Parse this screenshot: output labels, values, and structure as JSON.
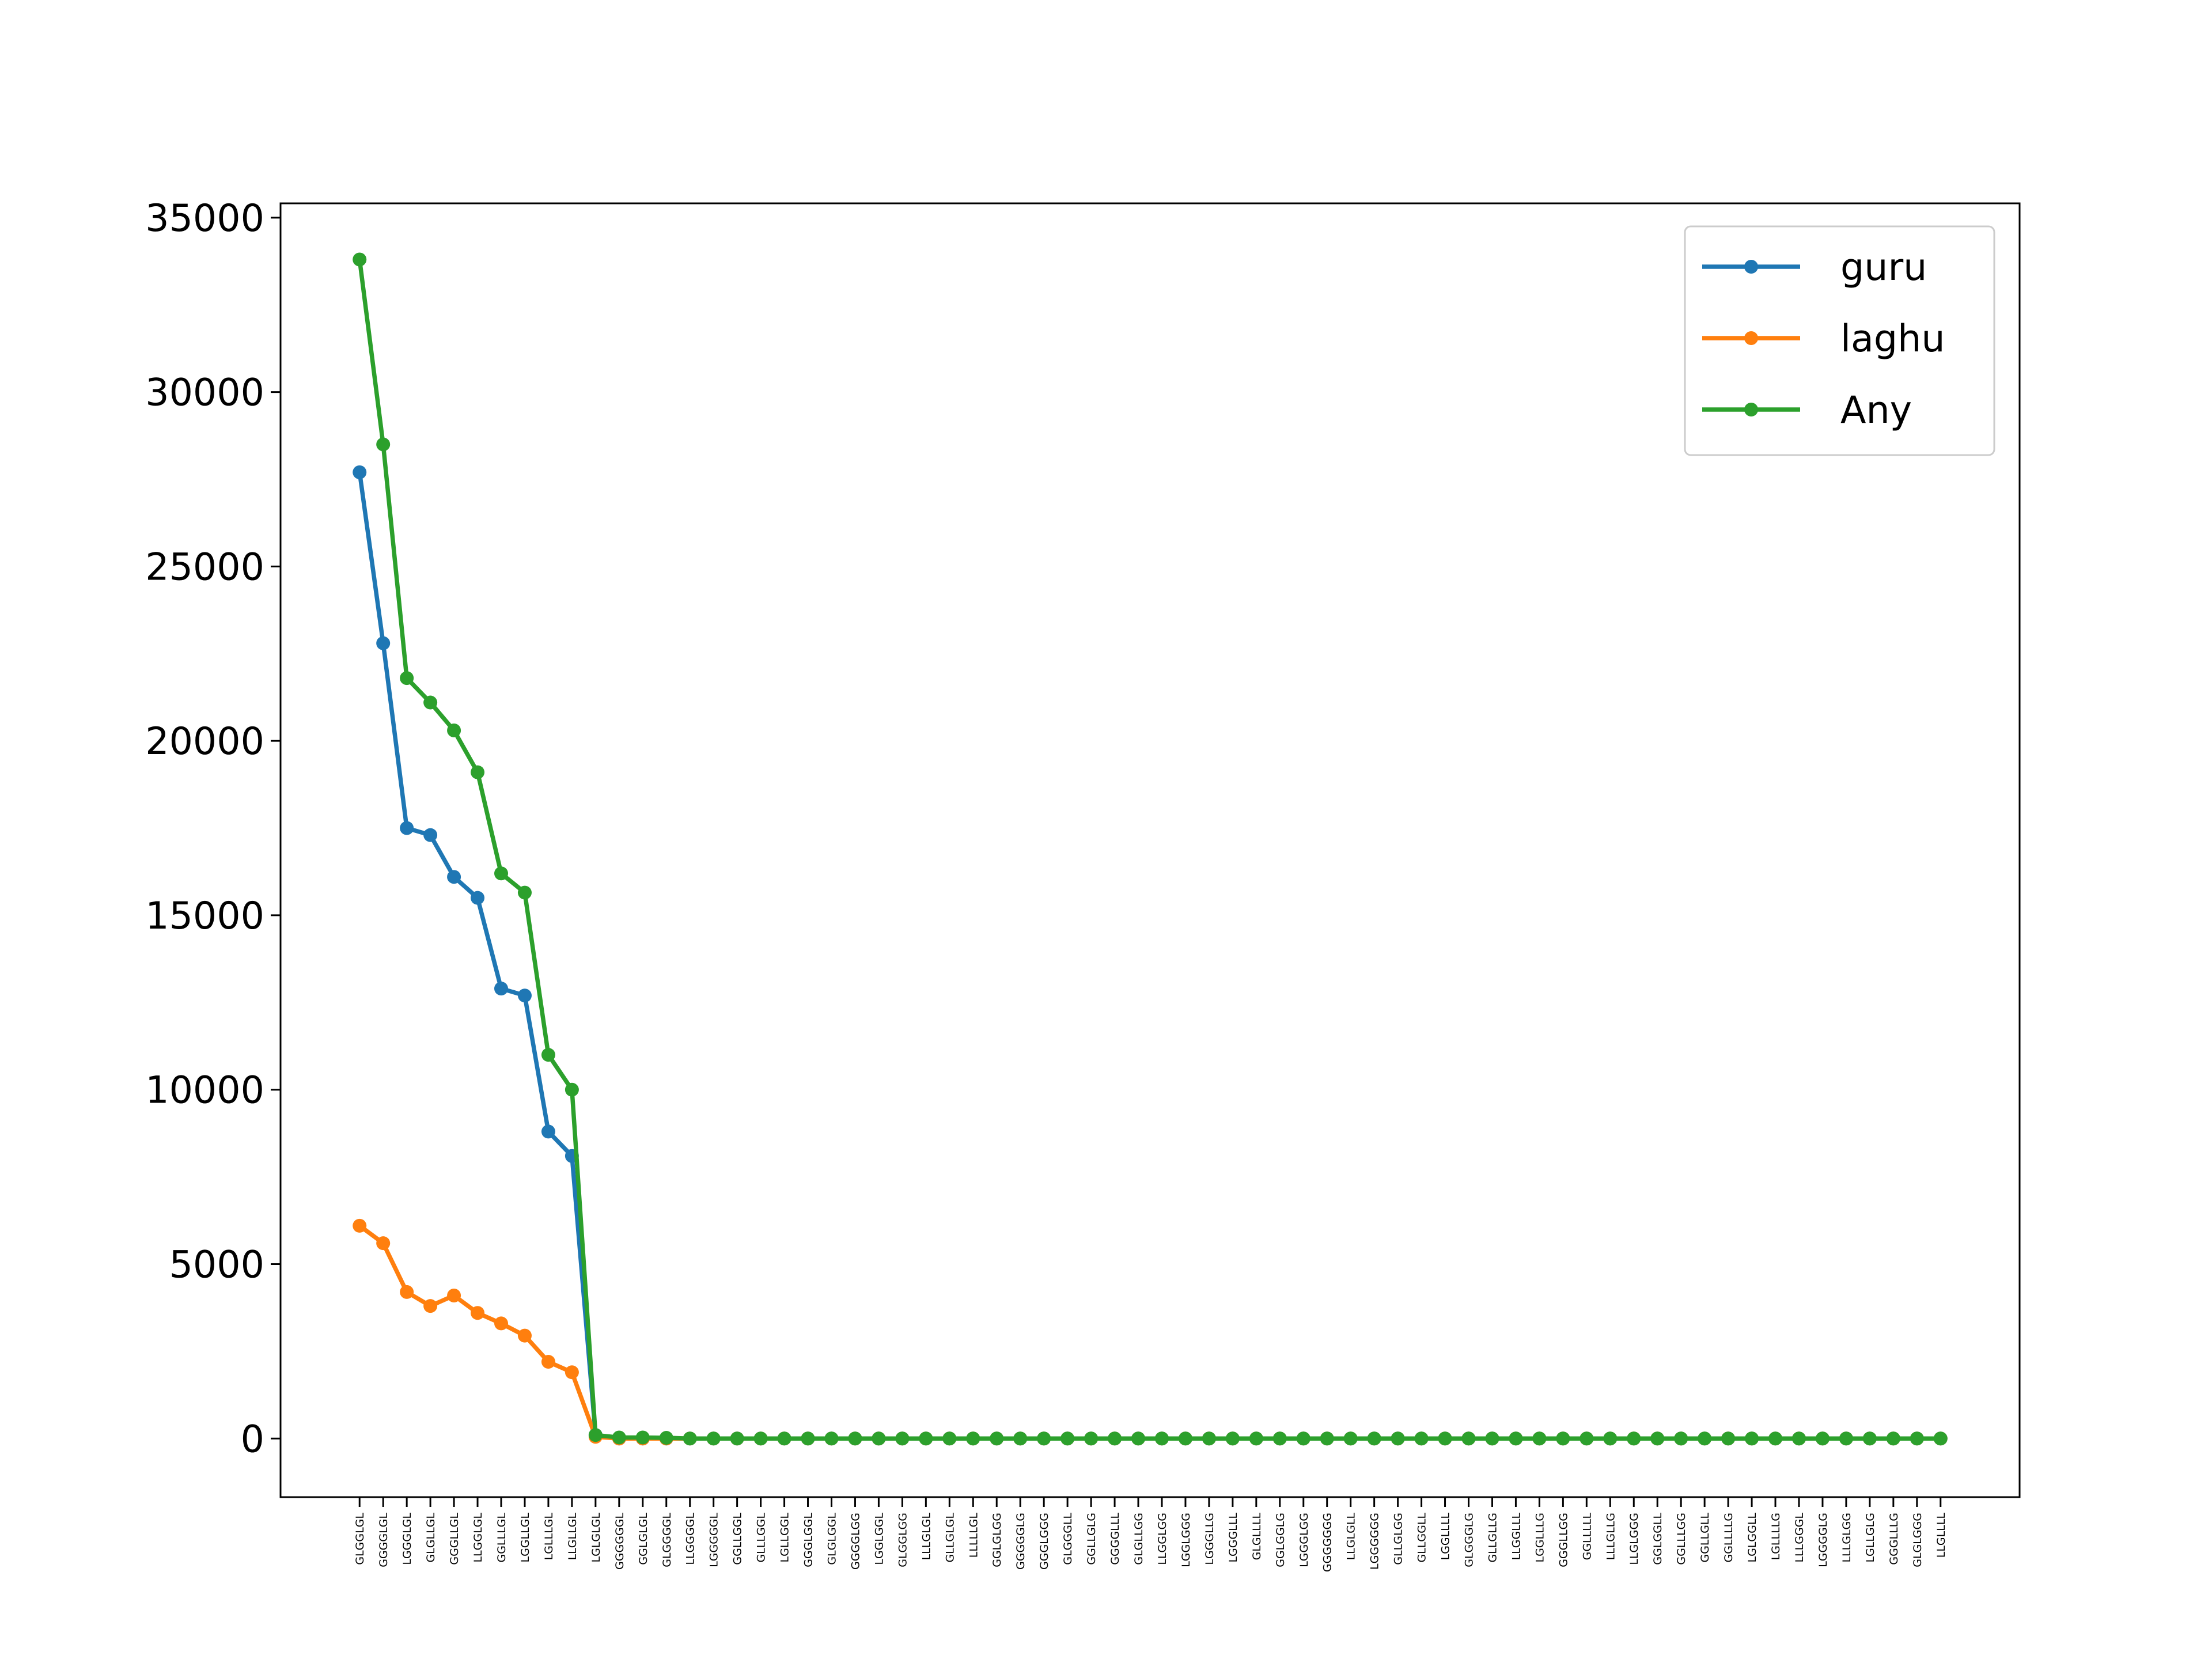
{
  "chart_data": {
    "type": "line",
    "categories": [
      "GLGGLGL",
      "GGGGLGL",
      "LGGGLGL",
      "GLGLLGL",
      "GGGLLGL",
      "LLGGLGL",
      "GGLLLGL",
      "LGGLLGL",
      "LGLLLGL",
      "LLGLLGL",
      "LGLGLGL",
      "GGGGGGL",
      "GGLGLGL",
      "GLGGGGL",
      "LLGGGGL",
      "LGGGGGL",
      "GGLLGGL",
      "GLLLGGL",
      "LGLLGGL",
      "GGGLGGL",
      "GLGLGGL",
      "GGGGLGG",
      "LGGLGGL",
      "GLGGLGG",
      "LLLGLGL",
      "GLLGLGL",
      "LLLLLGL",
      "GGLGLGG",
      "GGGGGLG",
      "GGGLGGG",
      "GLGGGLL",
      "GGLLGLG",
      "GGGGLLL",
      "GLGLLGG",
      "LLGGLGG",
      "LGGLGGG",
      "LGGGLLG",
      "LGGGLLL",
      "GLGLLLL",
      "GGLGGLG",
      "LGGGLGG",
      "GGGGGGG",
      "LLGLGLL",
      "LGGGGGG",
      "GLLGLGG",
      "GLLGGLL",
      "LGGLLLL",
      "GLGGGLG",
      "GLLGLLG",
      "LLGGLLL",
      "LGGLLLG",
      "GGGLLGG",
      "GGLLLLL",
      "LLLGLLG",
      "LLGLGGG",
      "GGLGGLL",
      "GGLLLGG",
      "GGLLGLL",
      "GGLLLLG",
      "LGLGGLL",
      "LGLLLLG",
      "LLLGGGL",
      "LGGGGLG",
      "LLLGLGG",
      "LGLLGLG",
      "GGGLLLG",
      "GLGLGGG",
      "LLGLLLL"
    ],
    "series": [
      {
        "name": "guru",
        "color": "#1f77b4",
        "values": [
          27700,
          22800,
          17500,
          17300,
          16100,
          15500,
          12900,
          12700,
          8800,
          8100,
          100,
          0,
          0,
          0,
          0,
          0,
          0,
          0,
          0,
          0,
          0,
          0,
          0,
          0,
          0,
          0,
          0,
          0,
          0,
          0,
          0,
          0,
          0,
          0,
          0,
          0,
          0,
          0,
          0,
          0,
          0,
          0,
          0,
          0,
          0,
          0,
          0,
          0,
          0,
          0,
          0,
          0,
          0,
          0,
          0,
          0,
          0,
          0,
          0,
          0,
          0,
          0,
          0,
          0,
          0,
          0,
          0,
          0
        ]
      },
      {
        "name": "laghu",
        "color": "#ff7f0e",
        "values": [
          6100,
          5600,
          4200,
          3800,
          4100,
          3600,
          3300,
          2950,
          2200,
          1900,
          50,
          0,
          0,
          0,
          0,
          0,
          0,
          0,
          0,
          0,
          0,
          0,
          0,
          0,
          0,
          0,
          0,
          0,
          0,
          0,
          0,
          0,
          0,
          0,
          0,
          0,
          0,
          0,
          0,
          0,
          0,
          0,
          0,
          0,
          0,
          0,
          0,
          0,
          0,
          0,
          0,
          0,
          0,
          0,
          0,
          0,
          0,
          0,
          0,
          0,
          0,
          0,
          0,
          0,
          0,
          0,
          0,
          0
        ]
      },
      {
        "name": "Any",
        "color": "#2ca02c",
        "values": [
          33800,
          28500,
          21800,
          21100,
          20300,
          19100,
          16200,
          15650,
          11000,
          10000,
          100,
          30,
          30,
          20,
          0,
          0,
          0,
          0,
          0,
          0,
          0,
          0,
          0,
          0,
          0,
          0,
          0,
          0,
          0,
          0,
          0,
          0,
          0,
          0,
          0,
          0,
          0,
          0,
          0,
          0,
          0,
          0,
          0,
          0,
          0,
          0,
          0,
          0,
          0,
          0,
          0,
          0,
          0,
          0,
          0,
          0,
          0,
          0,
          0,
          0,
          0,
          0,
          0,
          0,
          0,
          0,
          0,
          0
        ]
      }
    ],
    "ylim": [
      -1680,
      35410
    ],
    "yticks": [
      0,
      5000,
      10000,
      15000,
      20000,
      25000,
      30000,
      35000
    ],
    "legend": "upper right"
  }
}
